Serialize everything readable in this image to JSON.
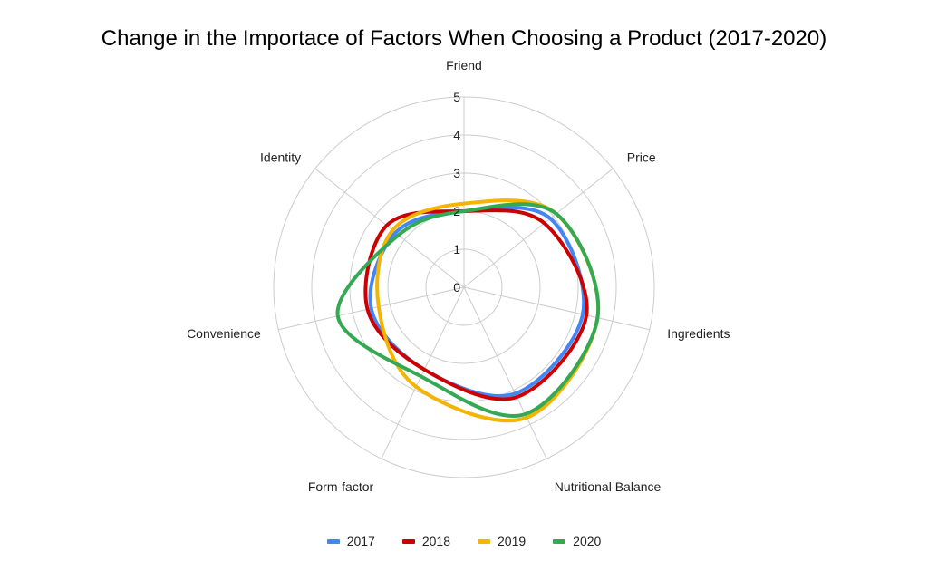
{
  "chart_data": {
    "type": "radar",
    "title": "Change in the Importace of Factors When Choosing a Product (2017-2020)",
    "categories": [
      "Friend",
      "Price",
      "Ingredients",
      "Nutritional Balance",
      "Form-factor",
      "Convenience",
      "Identity"
    ],
    "radial_ticks": [
      "0",
      "1",
      "2",
      "3",
      "4",
      "5"
    ],
    "rmax": 5,
    "grid": true,
    "legend_position": "bottom",
    "series": [
      {
        "name": "2017",
        "color": "#4285F4",
        "values": [
          2.0,
          2.9,
          3.2,
          3.1,
          2.4,
          2.5,
          2.3
        ]
      },
      {
        "name": "2018",
        "color": "#CC0000",
        "values": [
          2.0,
          2.7,
          3.3,
          3.2,
          2.4,
          2.6,
          2.6
        ]
      },
      {
        "name": "2019",
        "color": "#F4B400",
        "values": [
          2.2,
          3.1,
          3.6,
          3.8,
          2.9,
          2.3,
          2.4
        ]
      },
      {
        "name": "2020",
        "color": "#34A853",
        "values": [
          2.0,
          3.1,
          3.6,
          3.7,
          2.6,
          3.4,
          2.2
        ]
      }
    ]
  }
}
